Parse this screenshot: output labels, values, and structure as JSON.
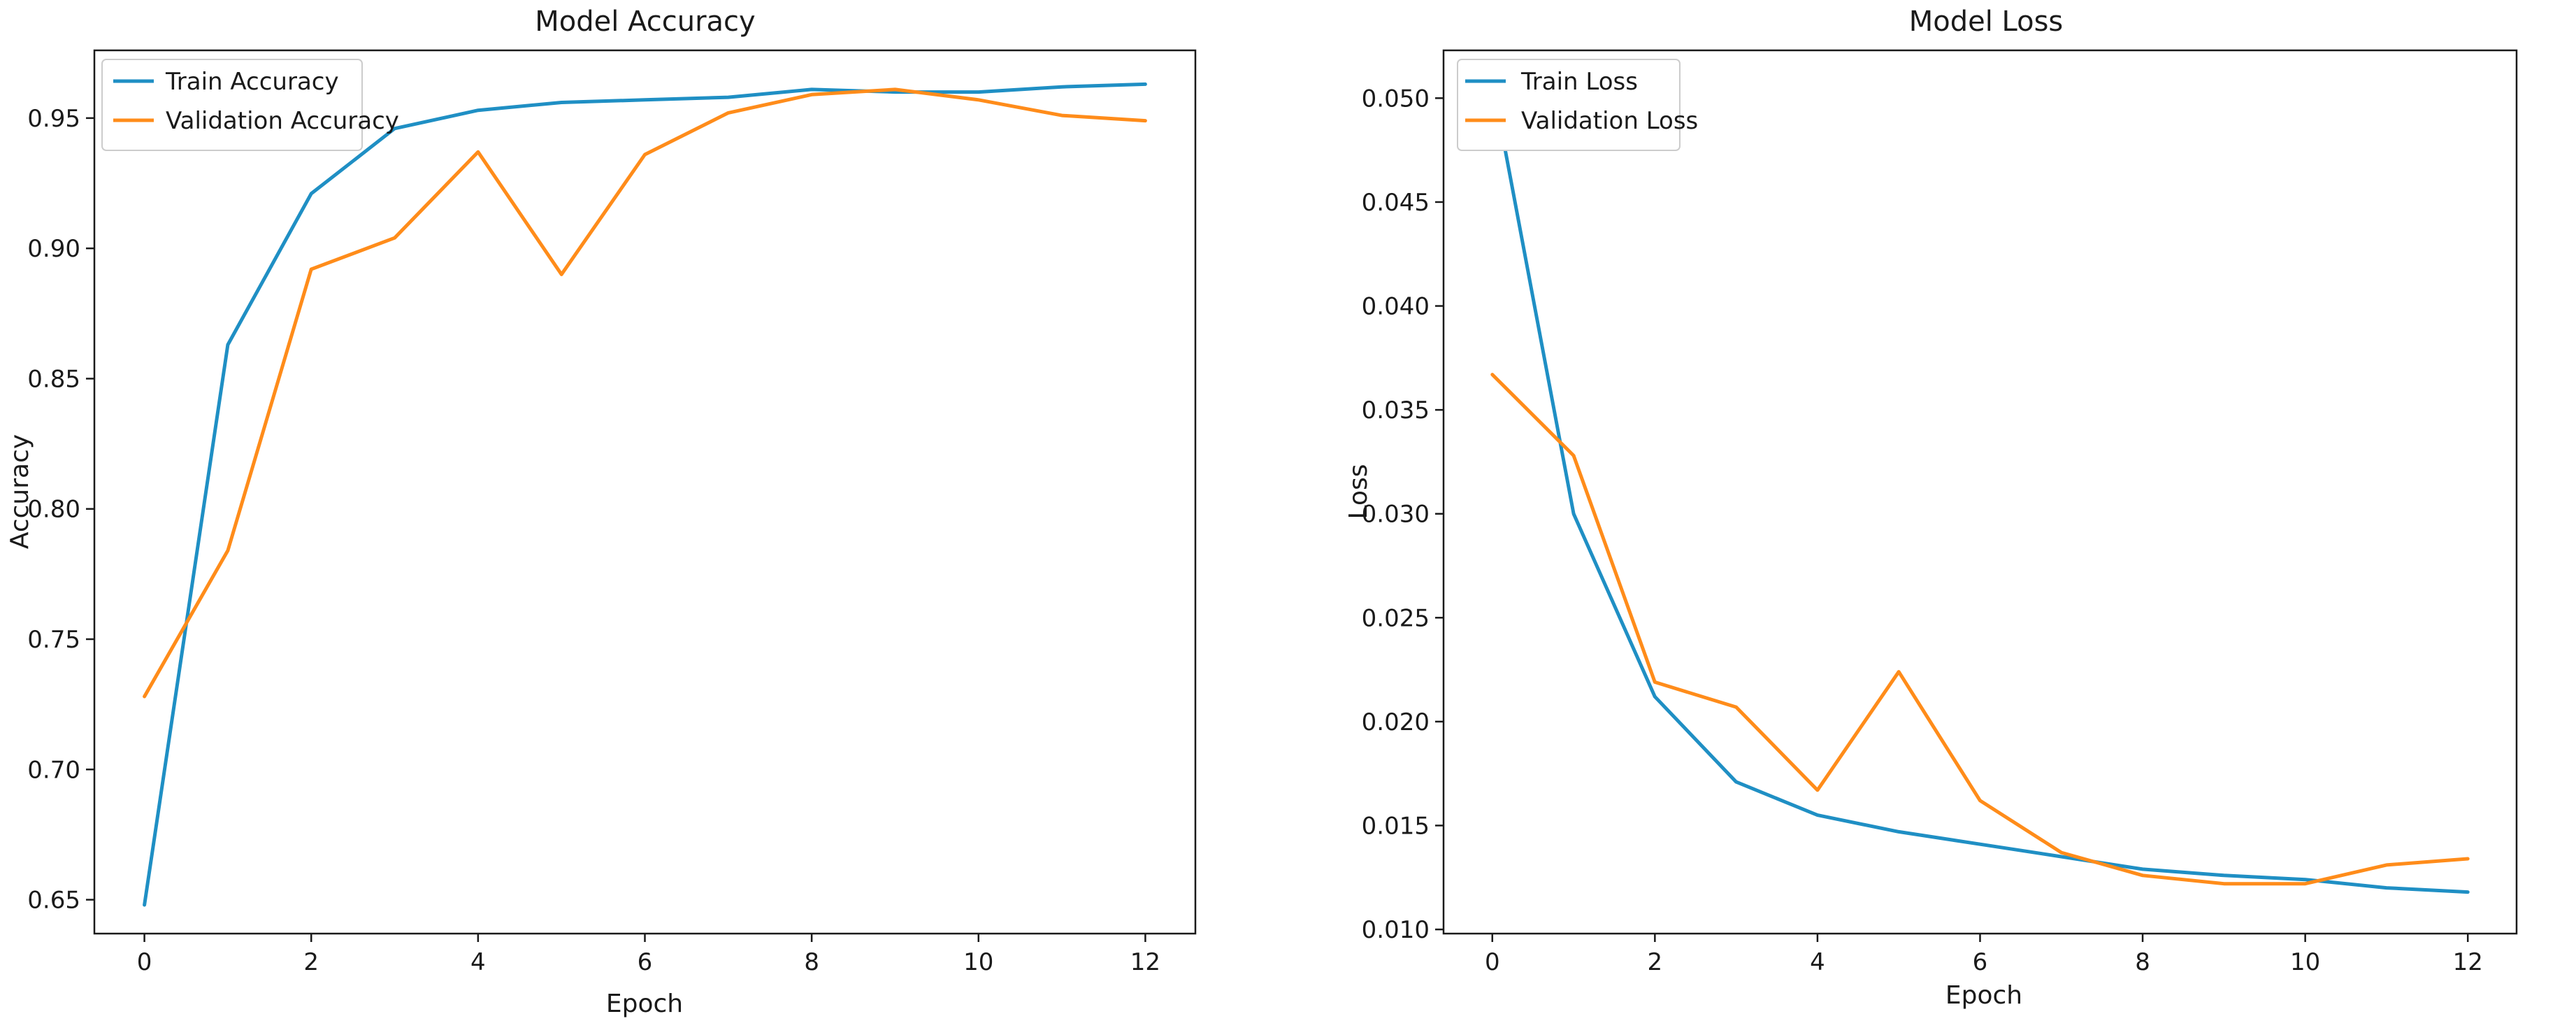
{
  "colors": {
    "train": "#1f8fc4",
    "validation": "#ff8c1a",
    "axis": "#1a1a1a",
    "legend_border": "#cccccc"
  },
  "chart_data": [
    {
      "type": "line",
      "title": "Model Accuracy",
      "xlabel": "Epoch",
      "ylabel": "Accuracy",
      "xlim": [
        -0.6,
        12.6
      ],
      "ylim": [
        0.637,
        0.976
      ],
      "xticks": [
        0,
        2,
        4,
        6,
        8,
        10,
        12
      ],
      "xtick_labels": [
        "0",
        "2",
        "4",
        "6",
        "8",
        "10",
        "12"
      ],
      "yticks": [
        0.65,
        0.7,
        0.75,
        0.8,
        0.85,
        0.9,
        0.95
      ],
      "ytick_labels": [
        "0.65",
        "0.70",
        "0.75",
        "0.80",
        "0.85",
        "0.90",
        "0.95"
      ],
      "grid": false,
      "legend_position": "top-left",
      "x": [
        0,
        1,
        2,
        3,
        4,
        5,
        6,
        7,
        8,
        9,
        10,
        11,
        12
      ],
      "series": [
        {
          "name": "Train Accuracy",
          "color_key": "train",
          "values": [
            0.648,
            0.863,
            0.921,
            0.946,
            0.953,
            0.956,
            0.957,
            0.958,
            0.961,
            0.96,
            0.96,
            0.962,
            0.963
          ]
        },
        {
          "name": "Validation Accuracy",
          "color_key": "validation",
          "values": [
            0.728,
            0.784,
            0.892,
            0.904,
            0.937,
            0.89,
            0.936,
            0.952,
            0.959,
            0.961,
            0.957,
            0.951,
            0.949
          ]
        }
      ]
    },
    {
      "type": "line",
      "title": "Model Loss",
      "xlabel": "Epoch",
      "ylabel": "Loss",
      "xlim": [
        -0.6,
        12.6
      ],
      "ylim": [
        0.0098,
        0.0523
      ],
      "xticks": [
        0,
        2,
        4,
        6,
        8,
        10,
        12
      ],
      "xtick_labels": [
        "0",
        "2",
        "4",
        "6",
        "8",
        "10",
        "12"
      ],
      "yticks": [
        0.01,
        0.015,
        0.02,
        0.025,
        0.03,
        0.035,
        0.04,
        0.045,
        0.05
      ],
      "ytick_labels": [
        "0.010",
        "0.015",
        "0.020",
        "0.025",
        "0.030",
        "0.035",
        "0.040",
        "0.045",
        "0.050"
      ],
      "grid": false,
      "legend_position": "top-left",
      "x": [
        0,
        1,
        2,
        3,
        4,
        5,
        6,
        7,
        8,
        9,
        10,
        11,
        12
      ],
      "series": [
        {
          "name": "Train Loss",
          "color_key": "train",
          "values": [
            0.0508,
            0.03,
            0.0212,
            0.0171,
            0.0155,
            0.0147,
            0.0141,
            0.0135,
            0.0129,
            0.0126,
            0.0124,
            0.012,
            0.0118
          ]
        },
        {
          "name": "Validation Loss",
          "color_key": "validation",
          "values": [
            0.0367,
            0.0328,
            0.0219,
            0.0207,
            0.0167,
            0.0224,
            0.0162,
            0.0137,
            0.0126,
            0.0122,
            0.0122,
            0.0131,
            0.0134
          ]
        }
      ]
    }
  ]
}
